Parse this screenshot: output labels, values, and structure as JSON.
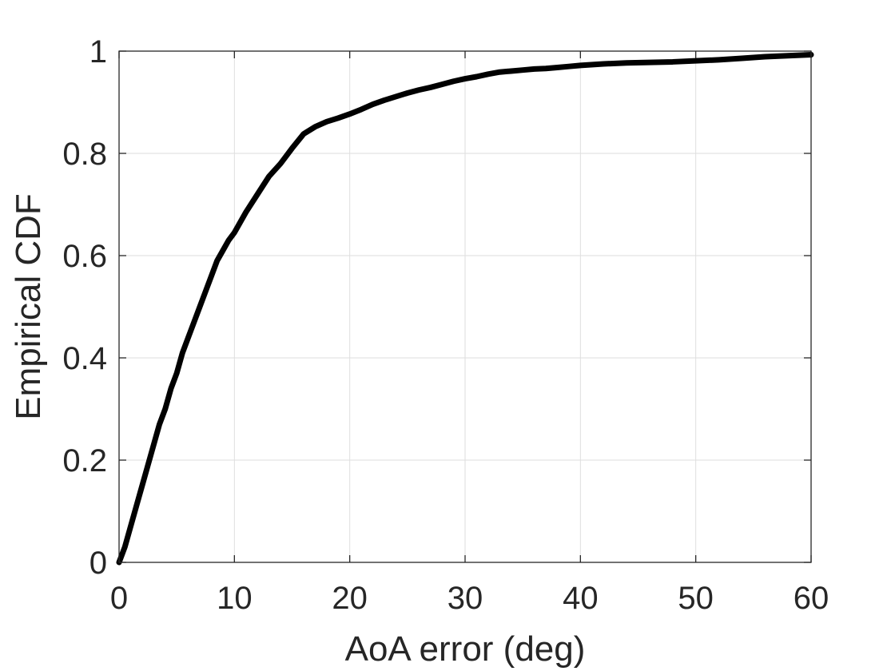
{
  "chart_data": {
    "type": "line",
    "title": "",
    "xlabel": "AoA error (deg)",
    "ylabel": "Empirical CDF",
    "xlim": [
      0,
      60
    ],
    "ylim": [
      0,
      1
    ],
    "xticks": [
      0,
      10,
      20,
      30,
      40,
      50,
      60
    ],
    "yticks": [
      0,
      0.2,
      0.4,
      0.6,
      0.8,
      1
    ],
    "xtick_labels": [
      "0",
      "10",
      "20",
      "30",
      "40",
      "50",
      "60"
    ],
    "ytick_labels": [
      "0",
      "0.2",
      "0.4",
      "0.6",
      "0.8",
      "1"
    ],
    "grid": true,
    "legend": false,
    "series": [
      {
        "line_color": "#000000",
        "x": [
          0,
          0.5,
          1,
          1.5,
          2,
          2.5,
          3,
          3.5,
          4,
          4.5,
          5,
          5.5,
          6,
          6.5,
          7,
          7.5,
          8,
          8.5,
          9,
          9.5,
          10,
          11,
          12,
          13,
          14,
          15,
          16,
          17,
          18,
          19,
          20,
          21,
          22,
          23,
          24,
          25,
          26,
          27,
          28,
          29,
          30,
          31,
          32,
          33,
          34,
          35,
          36,
          37,
          38,
          39,
          40,
          42,
          44,
          46,
          48,
          50,
          52,
          54,
          56,
          58,
          60
        ],
        "y": [
          0,
          0.03,
          0.07,
          0.11,
          0.15,
          0.19,
          0.23,
          0.27,
          0.3,
          0.34,
          0.37,
          0.41,
          0.44,
          0.47,
          0.5,
          0.53,
          0.56,
          0.59,
          0.61,
          0.63,
          0.645,
          0.685,
          0.72,
          0.755,
          0.78,
          0.81,
          0.838,
          0.852,
          0.862,
          0.869,
          0.877,
          0.886,
          0.896,
          0.904,
          0.911,
          0.918,
          0.924,
          0.929,
          0.935,
          0.941,
          0.946,
          0.95,
          0.955,
          0.959,
          0.961,
          0.963,
          0.965,
          0.966,
          0.968,
          0.97,
          0.972,
          0.975,
          0.977,
          0.978,
          0.979,
          0.981,
          0.983,
          0.986,
          0.989,
          0.991,
          0.993
        ]
      }
    ]
  }
}
